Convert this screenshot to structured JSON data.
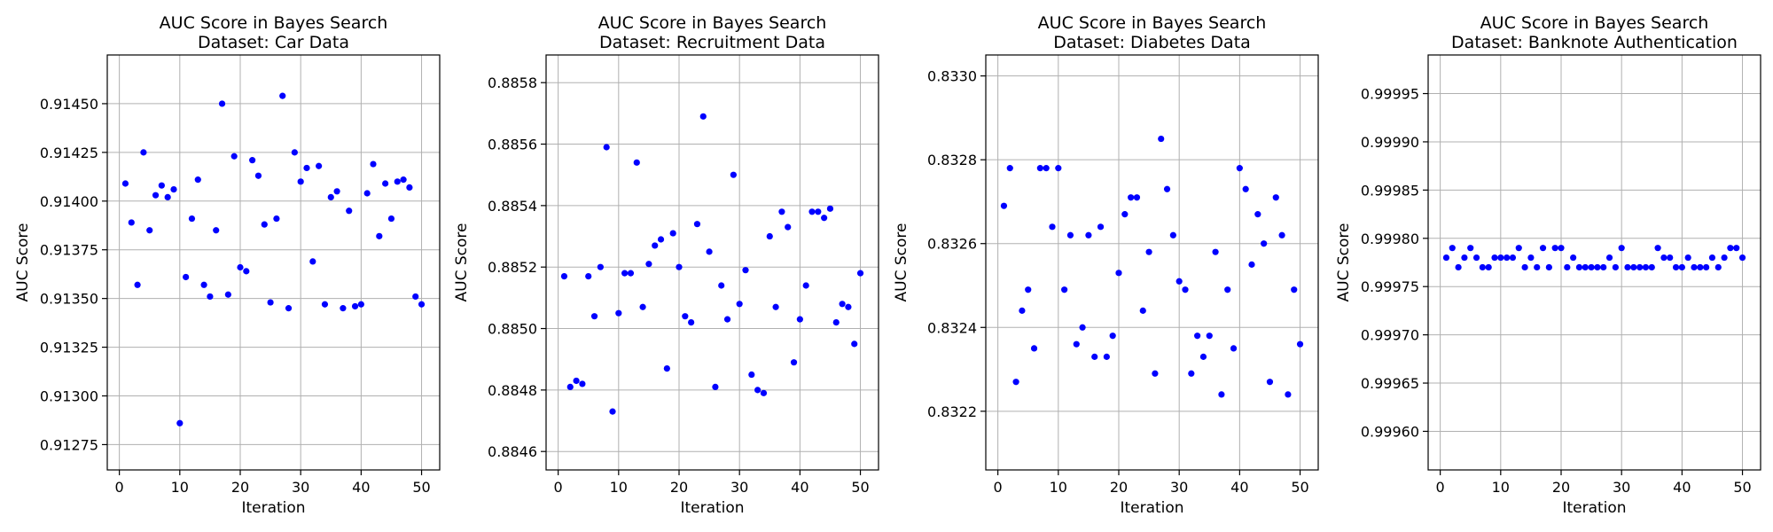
{
  "colors": {
    "point": "#0000ff",
    "grid": "#b0b0b0",
    "frame": "#000000"
  },
  "chart_data": [
    {
      "type": "scatter",
      "title": "AUC Score in Bayes Search",
      "subtitle": "Dataset: Car Data",
      "xlabel": "Iteration",
      "ylabel": "AUC Score",
      "xlim": [
        -2,
        53
      ],
      "ylim": [
        0.91262,
        0.91475
      ],
      "xticks": [
        0,
        10,
        20,
        30,
        40,
        50
      ],
      "yticks": [
        0.91275,
        0.913,
        0.91325,
        0.9135,
        0.91375,
        0.914,
        0.91425,
        0.9145
      ],
      "ytick_labels": [
        "0.91275",
        "0.91300",
        "0.91325",
        "0.91350",
        "0.91375",
        "0.91400",
        "0.91425",
        "0.91450"
      ],
      "grid": true,
      "x": [
        1,
        2,
        3,
        4,
        5,
        6,
        7,
        8,
        9,
        10,
        11,
        12,
        13,
        14,
        15,
        16,
        17,
        18,
        19,
        20,
        21,
        22,
        23,
        24,
        25,
        26,
        27,
        28,
        29,
        30,
        31,
        32,
        33,
        34,
        35,
        36,
        37,
        38,
        39,
        40,
        41,
        42,
        43,
        44,
        45,
        46,
        47,
        48,
        49,
        50
      ],
      "y": [
        0.91409,
        0.91389,
        0.91357,
        0.91425,
        0.91385,
        0.91403,
        0.91408,
        0.91402,
        0.91406,
        0.91286,
        0.91361,
        0.91391,
        0.91411,
        0.91357,
        0.91351,
        0.91385,
        0.9145,
        0.91352,
        0.91423,
        0.91366,
        0.91364,
        0.91421,
        0.91413,
        0.91388,
        0.91348,
        0.91391,
        0.91454,
        0.91345,
        0.91425,
        0.9141,
        0.91417,
        0.91369,
        0.91418,
        0.91347,
        0.91402,
        0.91405,
        0.91345,
        0.91395,
        0.91346,
        0.91347,
        0.91404,
        0.91419,
        0.91382,
        0.91409,
        0.91391,
        0.9141,
        0.91411,
        0.91407,
        0.91351,
        0.91347
      ]
    },
    {
      "type": "scatter",
      "title": "AUC Score in Bayes Search",
      "subtitle": "Dataset: Recruitment Data",
      "xlabel": "Iteration",
      "ylabel": "AUC Score",
      "xlim": [
        -2,
        53
      ],
      "ylim": [
        0.88454,
        0.88589
      ],
      "xticks": [
        0,
        10,
        20,
        30,
        40,
        50
      ],
      "yticks": [
        0.8846,
        0.8848,
        0.885,
        0.8852,
        0.8854,
        0.8856,
        0.8858
      ],
      "ytick_labels": [
        "0.8846",
        "0.8848",
        "0.8850",
        "0.8852",
        "0.8854",
        "0.8856",
        "0.8858"
      ],
      "grid": true,
      "x": [
        1,
        2,
        3,
        4,
        5,
        6,
        7,
        8,
        9,
        10,
        11,
        12,
        13,
        14,
        15,
        16,
        17,
        18,
        19,
        20,
        21,
        22,
        23,
        24,
        25,
        26,
        27,
        28,
        29,
        30,
        31,
        32,
        33,
        34,
        35,
        36,
        37,
        38,
        39,
        40,
        41,
        42,
        43,
        44,
        45,
        46,
        47,
        48,
        49,
        50
      ],
      "y": [
        0.88517,
        0.88481,
        0.88483,
        0.88482,
        0.88517,
        0.88504,
        0.8852,
        0.88559,
        0.88473,
        0.88505,
        0.88518,
        0.88518,
        0.88554,
        0.88507,
        0.88521,
        0.88527,
        0.88529,
        0.88487,
        0.88531,
        0.8852,
        0.88504,
        0.88502,
        0.88534,
        0.88569,
        0.88525,
        0.88481,
        0.88514,
        0.88503,
        0.8855,
        0.88508,
        0.88519,
        0.88485,
        0.8848,
        0.88479,
        0.8853,
        0.88507,
        0.88538,
        0.88533,
        0.88489,
        0.88503,
        0.88514,
        0.88538,
        0.88538,
        0.88536,
        0.88539,
        0.88502,
        0.88508,
        0.88507,
        0.88495,
        0.88518
      ]
    },
    {
      "type": "scatter",
      "title": "AUC Score in Bayes Search",
      "subtitle": "Dataset: Diabetes Data",
      "xlabel": "Iteration",
      "ylabel": "AUC Score",
      "xlim": [
        -2,
        53
      ],
      "ylim": [
        0.83206,
        0.83305
      ],
      "xticks": [
        0,
        10,
        20,
        30,
        40,
        50
      ],
      "yticks": [
        0.8322,
        0.8324,
        0.8326,
        0.8328,
        0.833
      ],
      "ytick_labels": [
        "0.8322",
        "0.8324",
        "0.8326",
        "0.8328",
        "0.8330"
      ],
      "grid": true,
      "x": [
        1,
        2,
        3,
        4,
        5,
        6,
        7,
        8,
        9,
        10,
        11,
        12,
        13,
        14,
        15,
        16,
        17,
        18,
        19,
        20,
        21,
        22,
        23,
        24,
        25,
        26,
        27,
        28,
        29,
        30,
        31,
        32,
        33,
        34,
        35,
        36,
        37,
        38,
        39,
        40,
        41,
        42,
        43,
        44,
        45,
        46,
        47,
        48,
        49,
        50
      ],
      "y": [
        0.83269,
        0.83278,
        0.83227,
        0.83244,
        0.83249,
        0.83235,
        0.83278,
        0.83278,
        0.83264,
        0.83278,
        0.83249,
        0.83262,
        0.83236,
        0.8324,
        0.83262,
        0.83233,
        0.83264,
        0.83233,
        0.83238,
        0.83253,
        0.83267,
        0.83271,
        0.83271,
        0.83244,
        0.83258,
        0.83229,
        0.83285,
        0.83273,
        0.83262,
        0.83251,
        0.83249,
        0.83229,
        0.83238,
        0.83233,
        0.83238,
        0.83258,
        0.83224,
        0.83249,
        0.83235,
        0.83278,
        0.83273,
        0.83255,
        0.83267,
        0.8326,
        0.83227,
        0.83271,
        0.83262,
        0.83224,
        0.83249,
        0.83236
      ]
    },
    {
      "type": "scatter",
      "title": "AUC Score in Bayes Search",
      "subtitle": "Dataset: Banknote Authentication",
      "xlabel": "Iteration",
      "ylabel": "AUC Score",
      "xlim": [
        -2,
        53
      ],
      "ylim": [
        0.99956,
        0.99999
      ],
      "xticks": [
        0,
        10,
        20,
        30,
        40,
        50
      ],
      "yticks": [
        0.9996,
        0.99965,
        0.9997,
        0.99975,
        0.9998,
        0.99985,
        0.9999,
        0.99995
      ],
      "ytick_labels": [
        "0.99960",
        "0.99965",
        "0.99970",
        "0.99975",
        "0.99980",
        "0.99985",
        "0.99990",
        "0.99995"
      ],
      "grid": true,
      "x": [
        1,
        2,
        3,
        4,
        5,
        6,
        7,
        8,
        9,
        10,
        11,
        12,
        13,
        14,
        15,
        16,
        17,
        18,
        19,
        20,
        21,
        22,
        23,
        24,
        25,
        26,
        27,
        28,
        29,
        30,
        31,
        32,
        33,
        34,
        35,
        36,
        37,
        38,
        39,
        40,
        41,
        42,
        43,
        44,
        45,
        46,
        47,
        48,
        49,
        50
      ],
      "y": [
        0.99978,
        0.99979,
        0.99977,
        0.99978,
        0.99979,
        0.99978,
        0.99977,
        0.99977,
        0.99978,
        0.99978,
        0.99978,
        0.99978,
        0.99979,
        0.99977,
        0.99978,
        0.99977,
        0.99979,
        0.99977,
        0.99979,
        0.99979,
        0.99977,
        0.99978,
        0.99977,
        0.99977,
        0.99977,
        0.99977,
        0.99977,
        0.99978,
        0.99977,
        0.99979,
        0.99977,
        0.99977,
        0.99977,
        0.99977,
        0.99977,
        0.99979,
        0.99978,
        0.99978,
        0.99977,
        0.99977,
        0.99978,
        0.99977,
        0.99977,
        0.99977,
        0.99978,
        0.99977,
        0.99978,
        0.99979,
        0.99979,
        0.99978
      ]
    }
  ]
}
